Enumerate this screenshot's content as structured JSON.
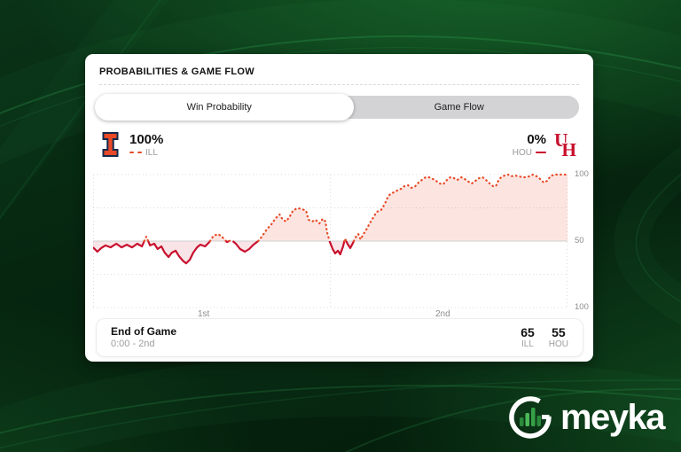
{
  "card": {
    "title": "PROBABILITIES & GAME FLOW",
    "toggle": {
      "options": [
        "Win Probability",
        "Game Flow"
      ],
      "selected": "Win Probability"
    },
    "teams": {
      "home": {
        "abbr": "ILL",
        "win_pct": "100%",
        "color": "#E84A27",
        "logo_icon": "illinois-block-i-logo"
      },
      "away": {
        "abbr": "HOU",
        "win_pct": "0%",
        "color": "#C8102E",
        "logo_icon": "houston-uh-logo"
      }
    },
    "footer": {
      "title": "End of Game",
      "clock": "0:00 - 2nd",
      "scores": [
        {
          "value": "65",
          "team": "ILL"
        },
        {
          "value": "55",
          "team": "HOU"
        }
      ]
    }
  },
  "chart_data": {
    "type": "area",
    "title": "Win Probability",
    "x_labels": [
      "1st",
      "2nd"
    ],
    "y_axis": {
      "right_labels": [
        "100",
        "50",
        "100"
      ],
      "midline": 50,
      "top_side": "ILL",
      "bottom_side": "HOU"
    },
    "grid": {
      "horizontal_dotted_pct": [
        100,
        75,
        25,
        0
      ],
      "vertical_dividers_pct": [
        0,
        50,
        100
      ],
      "midline_solid": true
    },
    "series": [
      {
        "name": "ILL win probability (above 50)",
        "color": "#E84A27",
        "fill": "rgba(232,74,39,0.14)",
        "style": "dotted"
      },
      {
        "name": "HOU win probability (below 50)",
        "color": "#C8102E",
        "fill": "rgba(200,16,46,0.11)",
        "style": "solid"
      }
    ],
    "points_desc": "pairs of [game time % , ILL win probability %]",
    "points": [
      [
        0.0,
        45.3
      ],
      [
        0.9,
        42.0
      ],
      [
        1.7,
        44.7
      ],
      [
        2.6,
        46.7
      ],
      [
        3.7,
        45.3
      ],
      [
        4.9,
        48.0
      ],
      [
        6.0,
        45.3
      ],
      [
        7.1,
        47.3
      ],
      [
        8.2,
        45.3
      ],
      [
        9.3,
        48.0
      ],
      [
        10.3,
        46.0
      ],
      [
        11.2,
        53.3
      ],
      [
        12.0,
        46.7
      ],
      [
        12.9,
        48.0
      ],
      [
        13.6,
        44.0
      ],
      [
        14.4,
        46.0
      ],
      [
        15.1,
        41.3
      ],
      [
        15.9,
        38.0
      ],
      [
        16.6,
        41.3
      ],
      [
        17.4,
        42.7
      ],
      [
        18.1,
        38.7
      ],
      [
        18.9,
        35.3
      ],
      [
        19.6,
        33.3
      ],
      [
        20.4,
        36.0
      ],
      [
        21.1,
        41.3
      ],
      [
        21.9,
        45.3
      ],
      [
        22.6,
        47.3
      ],
      [
        23.6,
        46.0
      ],
      [
        24.5,
        49.3
      ],
      [
        25.4,
        54.0
      ],
      [
        26.4,
        55.3
      ],
      [
        27.3,
        52.7
      ],
      [
        28.2,
        49.3
      ],
      [
        29.2,
        50.7
      ],
      [
        30.1,
        48.0
      ],
      [
        31.0,
        44.0
      ],
      [
        32.0,
        42.0
      ],
      [
        32.9,
        44.0
      ],
      [
        33.8,
        47.3
      ],
      [
        34.8,
        50.0
      ],
      [
        35.7,
        54.0
      ],
      [
        36.6,
        58.7
      ],
      [
        37.6,
        62.7
      ],
      [
        38.5,
        67.3
      ],
      [
        39.3,
        70.0
      ],
      [
        40.0,
        66.0
      ],
      [
        40.7,
        64.7
      ],
      [
        41.5,
        68.7
      ],
      [
        42.2,
        73.3
      ],
      [
        43.2,
        74.7
      ],
      [
        44.1,
        74.0
      ],
      [
        44.9,
        72.7
      ],
      [
        45.4,
        66.0
      ],
      [
        46.2,
        64.7
      ],
      [
        46.9,
        66.0
      ],
      [
        47.7,
        63.3
      ],
      [
        48.4,
        66.7
      ],
      [
        49.0,
        64.7
      ],
      [
        49.3,
        56.7
      ],
      [
        49.9,
        49.3
      ],
      [
        50.5,
        44.0
      ],
      [
        51.0,
        40.7
      ],
      [
        51.6,
        42.7
      ],
      [
        52.1,
        40.0
      ],
      [
        52.7,
        46.0
      ],
      [
        53.1,
        52.0
      ],
      [
        53.6,
        48.0
      ],
      [
        54.2,
        44.7
      ],
      [
        54.8,
        48.7
      ],
      [
        55.3,
        52.7
      ],
      [
        55.9,
        55.3
      ],
      [
        56.4,
        51.3
      ],
      [
        57.0,
        55.3
      ],
      [
        57.6,
        58.7
      ],
      [
        58.3,
        63.3
      ],
      [
        59.1,
        68.0
      ],
      [
        59.8,
        72.0
      ],
      [
        60.7,
        73.3
      ],
      [
        61.5,
        78.0
      ],
      [
        62.1,
        82.7
      ],
      [
        62.6,
        85.3
      ],
      [
        63.4,
        86.7
      ],
      [
        64.1,
        88.0
      ],
      [
        64.9,
        89.3
      ],
      [
        65.6,
        91.3
      ],
      [
        66.4,
        92.0
      ],
      [
        67.1,
        90.0
      ],
      [
        67.9,
        91.3
      ],
      [
        68.6,
        94.0
      ],
      [
        69.3,
        96.0
      ],
      [
        70.1,
        98.0
      ],
      [
        70.8,
        98.0
      ],
      [
        71.6,
        96.7
      ],
      [
        72.3,
        95.3
      ],
      [
        73.1,
        93.3
      ],
      [
        73.8,
        92.7
      ],
      [
        74.6,
        96.0
      ],
      [
        75.3,
        98.0
      ],
      [
        76.1,
        97.3
      ],
      [
        76.8,
        96.0
      ],
      [
        77.6,
        98.0
      ],
      [
        78.3,
        96.7
      ],
      [
        79.1,
        94.7
      ],
      [
        79.8,
        93.3
      ],
      [
        80.6,
        95.3
      ],
      [
        81.3,
        97.3
      ],
      [
        82.1,
        98.0
      ],
      [
        82.8,
        96.0
      ],
      [
        83.6,
        93.3
      ],
      [
        84.3,
        91.3
      ],
      [
        84.9,
        91.3
      ],
      [
        85.4,
        95.3
      ],
      [
        86.0,
        98.0
      ],
      [
        86.7,
        99.3
      ],
      [
        87.5,
        100.0
      ],
      [
        88.2,
        98.7
      ],
      [
        89.0,
        99.3
      ],
      [
        89.7,
        98.7
      ],
      [
        90.5,
        98.0
      ],
      [
        91.2,
        98.0
      ],
      [
        92.0,
        98.7
      ],
      [
        92.7,
        100.0
      ],
      [
        93.5,
        98.7
      ],
      [
        94.2,
        96.7
      ],
      [
        95.0,
        94.0
      ],
      [
        95.7,
        95.3
      ],
      [
        96.4,
        98.7
      ],
      [
        97.2,
        100.0
      ],
      [
        97.9,
        100.0
      ],
      [
        98.7,
        100.0
      ],
      [
        99.4,
        100.0
      ],
      [
        100.0,
        100.0
      ]
    ]
  },
  "brand": {
    "name": "meyka",
    "logo_icon": "meyka-ring-bars-logo",
    "accent_color": "#3aa34c"
  }
}
